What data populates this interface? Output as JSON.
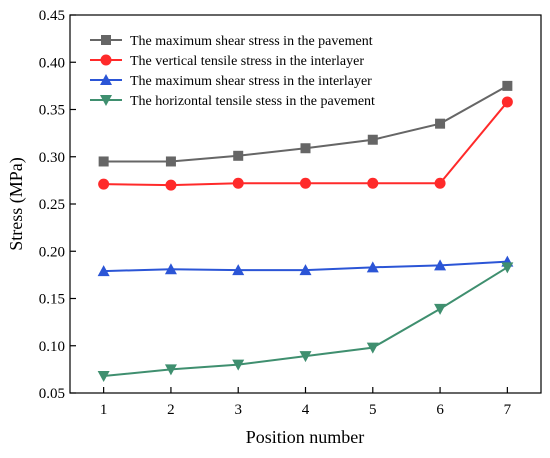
{
  "chart_data": {
    "type": "line",
    "title": "",
    "xlabel": "Position number",
    "ylabel": "Stress (MPa)",
    "x": [
      1,
      2,
      3,
      4,
      5,
      6,
      7
    ],
    "xlim": [
      0.5,
      7.5
    ],
    "ylim": [
      0.05,
      0.45
    ],
    "x_ticks": [
      "1",
      "2",
      "3",
      "4",
      "5",
      "6",
      "7"
    ],
    "y_ticks": [
      "0.05",
      "0.10",
      "0.15",
      "0.20",
      "0.25",
      "0.30",
      "0.35",
      "0.40",
      "0.45"
    ],
    "grid": false,
    "legend_position": "top-left",
    "series": [
      {
        "name": "The maximum shear stress in the pavement",
        "values": [
          0.295,
          0.295,
          0.301,
          0.309,
          0.318,
          0.335,
          0.375
        ],
        "color": "#666666",
        "marker": "square"
      },
      {
        "name": "The vertical tensile stress in the interlayer",
        "values": [
          0.271,
          0.27,
          0.272,
          0.272,
          0.272,
          0.272,
          0.358
        ],
        "color": "#ff2a2a",
        "marker": "circle"
      },
      {
        "name": "The maximum shear stress in the interlayer",
        "values": [
          0.179,
          0.181,
          0.18,
          0.18,
          0.183,
          0.185,
          0.189
        ],
        "color": "#2b55d6",
        "marker": "triangle-up"
      },
      {
        "name": "The horizontal tensile stess in the pavement",
        "values": [
          0.068,
          0.075,
          0.08,
          0.089,
          0.098,
          0.139,
          0.183
        ],
        "color": "#3f8f6f",
        "marker": "triangle-down"
      }
    ]
  }
}
